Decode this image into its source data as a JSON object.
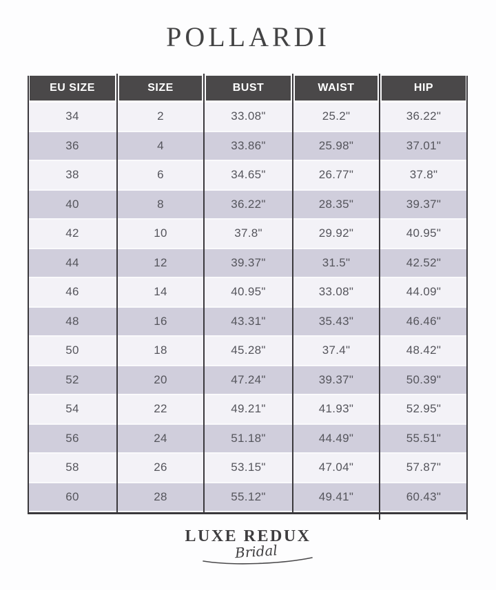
{
  "brand": {
    "title": "POLLARDI"
  },
  "chart_data": {
    "type": "table",
    "title": "POLLARDI",
    "columns": [
      "EU SIZE",
      "SIZE",
      "BUST",
      "WAIST",
      "HIP"
    ],
    "rows": [
      [
        "34",
        "2",
        "33.08\"",
        "25.2\"",
        "36.22\""
      ],
      [
        "36",
        "4",
        "33.86\"",
        "25.98\"",
        "37.01\""
      ],
      [
        "38",
        "6",
        "34.65\"",
        "26.77\"",
        "37.8\""
      ],
      [
        "40",
        "8",
        "36.22\"",
        "28.35\"",
        "39.37\""
      ],
      [
        "42",
        "10",
        "37.8\"",
        "29.92\"",
        "40.95\""
      ],
      [
        "44",
        "12",
        "39.37\"",
        "31.5\"",
        "42.52\""
      ],
      [
        "46",
        "14",
        "40.95\"",
        "33.08\"",
        "44.09\""
      ],
      [
        "48",
        "16",
        "43.31\"",
        "35.43\"",
        "46.46\""
      ],
      [
        "50",
        "18",
        "45.28\"",
        "37.4\"",
        "48.42\""
      ],
      [
        "52",
        "20",
        "47.24\"",
        "39.37\"",
        "50.39\""
      ],
      [
        "54",
        "22",
        "49.21\"",
        "41.93\"",
        "52.95\""
      ],
      [
        "56",
        "24",
        "51.18\"",
        "44.49\"",
        "55.51\""
      ],
      [
        "58",
        "26",
        "53.15\"",
        "47.04\"",
        "57.87\""
      ],
      [
        "60",
        "28",
        "55.12\"",
        "49.41\"",
        "60.43\""
      ]
    ],
    "units": "inches",
    "row_striping": "odd-light-even-dark"
  },
  "footer": {
    "logo_primary": "LUXE REDUX",
    "logo_script": "Bridal"
  },
  "colors": {
    "page_bg": "#fdfdfe",
    "title_color": "#434344",
    "header_bg": "#4a4849",
    "header_text": "#ffffff",
    "row_light": "#f3f2f7",
    "row_dark": "#d0cedc",
    "row_gap": "#fafafc",
    "border_color": "#3a383c",
    "cell_text": "#55555c",
    "logo_color": "#3e3d3f"
  }
}
